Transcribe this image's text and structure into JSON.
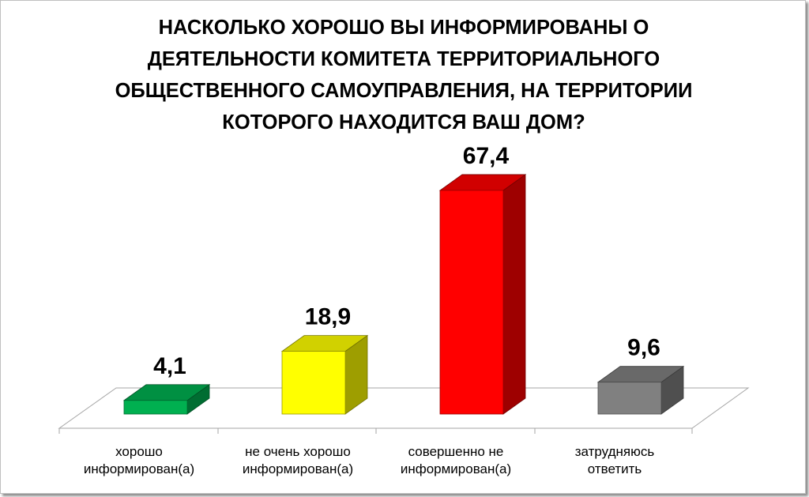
{
  "chart_data": {
    "type": "bar",
    "title": "НАСКОЛЬКО ХОРОШО ВЫ ИНФОРМИРОВАНЫ О ДЕЯТЕЛЬНОСТИ КОМИТЕТА ТЕРРИТОРИАЛЬНОГО ОБЩЕСТВЕННОГО САМОУПРАВЛЕНИЯ, НА ТЕРРИТОРИИ КОТОРОГО НАХОДИТСЯ ВАШ ДОМ?",
    "categories": [
      "хорошо\nинформирован(а)",
      "не очень хорошо\nинформирован(а)",
      "совершенно не\nинформирован(а)",
      "затрудняюсь\nответить"
    ],
    "values": [
      4.1,
      18.9,
      67.4,
      9.6
    ],
    "value_labels": [
      "4,1",
      "18,9",
      "67,4",
      "9,6"
    ],
    "colors": [
      "#00B050",
      "#FFFF00",
      "#FF0000",
      "#808080"
    ],
    "style": "3d-column",
    "grid": false,
    "legend": "none"
  }
}
